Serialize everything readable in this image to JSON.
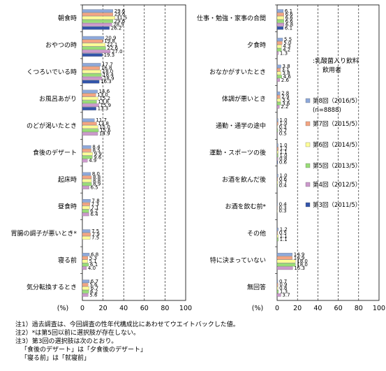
{
  "chart_data": {
    "type": "bar",
    "orientation": "horizontal",
    "xlim": [
      0,
      100
    ],
    "x_ticks": [
      0,
      20,
      40,
      60,
      80,
      100
    ],
    "x_unit": "(%)",
    "legend_title": ":乳酸菌入り飲料\n飲用者",
    "legend_placement": "right-center",
    "grid": true,
    "series": [
      {
        "name": "第8回（2016/5）",
        "sub": "(n=8888)",
        "color": "#8ea9db"
      },
      {
        "name": "第7回（2015/5）",
        "color": "#f4a582"
      },
      {
        "name": "第6回（2014/5）",
        "color": "#ffff99"
      },
      {
        "name": "第5回（2013/5）",
        "color": "#99dd77"
      },
      {
        "name": "第4回（2012/5）",
        "color": "#cc99cc"
      },
      {
        "name": "第3回（2011/5）",
        "color": "#3355aa"
      }
    ],
    "panels": [
      {
        "categories": [
          "朝食時",
          "おやつの時",
          "くつろいでいる時",
          "お風呂あがり",
          "のどが渇いたとき",
          "食後のデザート",
          "起床時",
          "昼食時",
          "胃腸の調子が悪いとき*",
          "寝る前",
          "気分転換するとき"
        ],
        "values": [
          [
            29.6,
            29.6,
            31.5,
            29.6,
            28.5,
            26.2
          ],
          [
            20.9,
            19.8,
            22.1,
            22.6,
            27.0,
            19.3
          ],
          [
            17.7,
            16.8,
            18.0,
            18.4,
            18.9,
            16.3
          ],
          [
            14.6,
            13.0,
            15.2,
            13.8,
            15.9,
            13.3
          ],
          [
            11.7,
            13.8,
            15.0,
            15.6,
            14.9,
            null
          ],
          [
            8.4,
            8.5,
            9.9,
            9.6,
            4.9,
            null
          ],
          [
            8.0,
            8.8,
            8.8,
            8.9,
            6.5,
            null
          ],
          [
            7.8,
            7.3,
            7.1,
            6.2,
            6.4,
            null
          ],
          [
            7.5,
            7.9,
            7.5,
            null,
            null,
            null
          ],
          [
            6.8,
            5.3,
            5.1,
            6.1,
            4.0,
            null
          ],
          [
            6.7,
            5.6,
            6.7,
            6.2,
            5.6,
            null
          ]
        ]
      },
      {
        "categories": [
          "仕事・勉強・家事の合間",
          "夕食時",
          "おなかがすいたとき",
          "体調が悪いとき",
          "通勤・通学の途中",
          "運動・スポーツの後",
          "お酒を飲んだ後",
          "お酒を飲む前*",
          "その他",
          "特に決まっていない",
          "無回答"
        ],
        "values": [
          [
            6.1,
            6.6,
            6.6,
            6.6,
            6.8,
            6.1
          ],
          [
            5.5,
            5.0,
            4.3,
            4.2,
            1.3,
            null
          ],
          [
            3.8,
            3.1,
            3.8,
            4.6,
            2.6,
            null
          ],
          [
            2.8,
            2.9,
            3.5,
            3.6,
            2.2,
            null
          ],
          [
            1.0,
            1.0,
            0.3,
            0.7,
            0.5,
            null
          ],
          [
            1.0,
            1.2,
            1.1,
            1.0,
            0.8,
            0.6
          ],
          [
            1.0,
            0.6,
            0.7,
            0.4,
            null,
            null
          ],
          [
            0.4,
            0.3,
            0.3,
            null,
            null,
            null
          ],
          [
            1.2,
            0.5,
            1.1,
            1.1,
            null,
            null
          ],
          [
            14.9,
            14.9,
            18.0,
            18.0,
            15.3,
            null
          ],
          [
            0.7,
            0.9,
            0.8,
            1.3,
            3.7,
            null
          ]
        ]
      }
    ]
  },
  "notes": [
    "注1）過去調査は、今回調査の性年代構成比にあわせてウエイトバックした値。",
    "注2）*は第5回以前に選択肢が存在しない。",
    "注3）第3回の選択肢は次のとおり。",
    "「食後のデザート」は「夕食後のデザート」",
    "「寝る前」は「就寝前」"
  ]
}
